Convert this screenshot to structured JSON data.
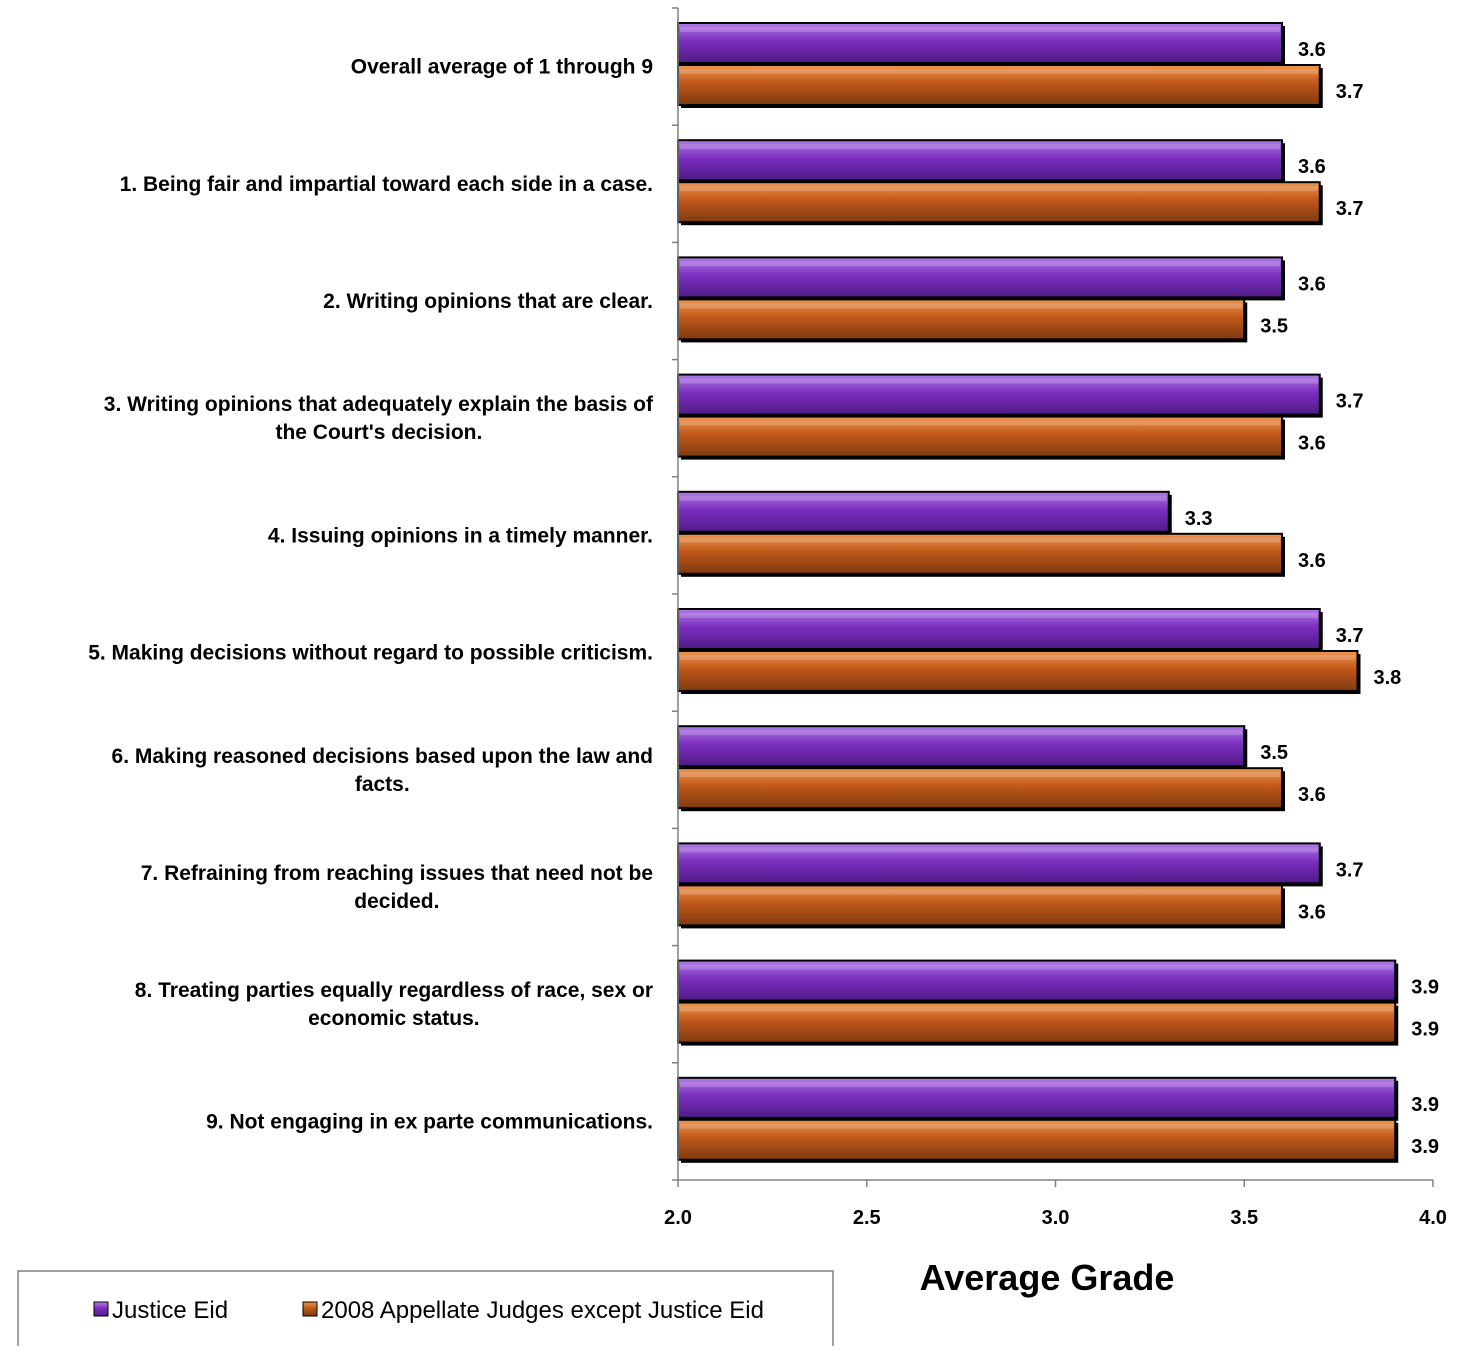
{
  "chart_data": {
    "type": "bar",
    "orientation": "horizontal",
    "categories": [
      [
        "Overall average of 1 through 9"
      ],
      [
        "1. Being fair and impartial toward each side in a case."
      ],
      [
        "2. Writing opinions that are clear."
      ],
      [
        "3. Writing opinions that adequately explain the basis of",
        "the Court's decision."
      ],
      [
        "4. Issuing opinions in a timely manner."
      ],
      [
        "5. Making decisions without regard to possible criticism."
      ],
      [
        "6. Making reasoned decisions based upon the law and",
        "facts."
      ],
      [
        "7. Refraining from reaching issues that need not be",
        "decided."
      ],
      [
        "8. Treating parties equally regardless of race, sex or",
        "economic status."
      ],
      [
        "9. Not engaging in ex parte communications."
      ]
    ],
    "series": [
      {
        "name": "Justice Eid",
        "color": "#7b2fbf",
        "values": [
          3.6,
          3.6,
          3.6,
          3.7,
          3.3,
          3.7,
          3.5,
          3.7,
          3.9,
          3.9
        ],
        "labels": [
          "3.6",
          "3.6",
          "3.6",
          "3.7",
          "3.3",
          "3.7",
          "3.5",
          "3.7",
          "3.9",
          "3.9"
        ]
      },
      {
        "name": "2008 Appellate Judges except Justice Eid",
        "color": "#c0581a",
        "values": [
          3.7,
          3.7,
          3.5,
          3.6,
          3.6,
          3.8,
          3.6,
          3.6,
          3.9,
          3.9
        ],
        "labels": [
          "3.7",
          "3.7",
          "3.5",
          "3.6",
          "3.6",
          "3.8",
          "3.6",
          "3.6",
          "3.9",
          "3.9"
        ]
      }
    ],
    "xlim": [
      2.0,
      4.0
    ],
    "xticks": [
      2.0,
      2.5,
      3.0,
      3.5,
      4.0
    ],
    "xtick_labels": [
      "2.0",
      "2.5",
      "3.0",
      "3.5",
      "4.0"
    ],
    "xlabel": "Average Grade",
    "legend_position": "bottom-left"
  }
}
